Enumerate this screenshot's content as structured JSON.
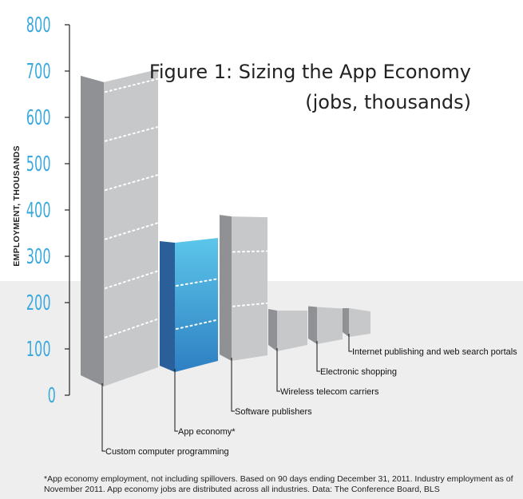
{
  "chart_data": {
    "type": "bar",
    "title": "Figure 1: Sizing the App Economy",
    "subtitle": "(jobs, thousands)",
    "ylabel": "EMPLOYMENT, THOUSANDS",
    "xlabel": "",
    "ylim": [
      0,
      800
    ],
    "yticks": [
      "0",
      "100",
      "200",
      "300",
      "400",
      "500",
      "600",
      "700",
      "800"
    ],
    "categories": [
      "Custom computer programming",
      "App economy*",
      "Software publishers",
      "Wireless telecom carriers",
      "Electronic shopping",
      "Internet publishing and web search portals"
    ],
    "values": [
      620,
      300,
      265,
      100,
      90,
      75
    ],
    "highlight_category": "App economy*",
    "grid": false,
    "legend": "none"
  },
  "colors": {
    "axis_labels": "#3aa9dc",
    "bar_front": "#c7c8ca",
    "bar_side": "#8f9194",
    "bar_top": "#b3b5b7",
    "highlight_front_top": "#5cc6ea",
    "highlight_front_bottom": "#2e7fc2",
    "highlight_side": "#2b5f99",
    "background_band": "#eeeeee"
  },
  "footnote": "*App economy employment, not including spillovers. Based on 90 days ending December 31, 2011. Industry employment as of November 2011. App economy jobs are distributed across all industries. Data: The Conference Board, BLS"
}
